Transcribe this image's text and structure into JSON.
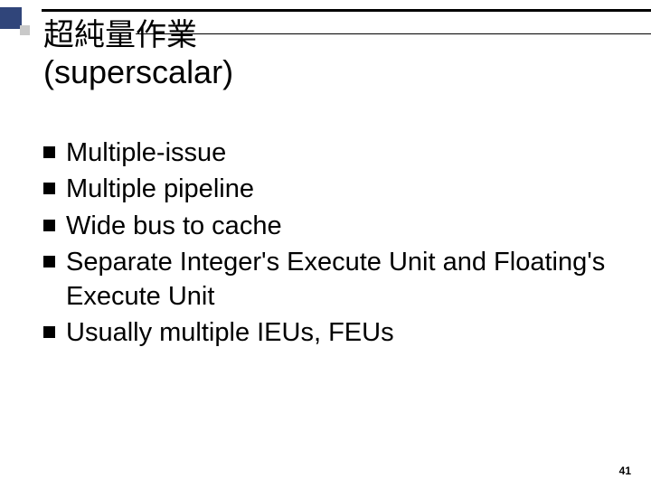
{
  "decor": {
    "big_square_color": "#30457a",
    "small_square_color": "#c9c9c9",
    "rule_color": "#000000"
  },
  "title": {
    "cjk": "超純量作業",
    "en": "(superscalar)"
  },
  "bullets": [
    "Multiple-issue",
    "Multiple pipeline",
    "Wide bus to cache",
    "Separate Integer's Execute Unit and Floating's Execute Unit",
    "Usually multiple IEUs, FEUs"
  ],
  "page_number": "41",
  "style": {
    "title_fontsize_cjk": 34,
    "title_fontsize_en": 36,
    "bullet_fontsize": 29,
    "bullet_marker_size": 13,
    "bullet_marker_color": "#000000",
    "text_color": "#000000",
    "background_color": "#ffffff",
    "page_num_fontsize": 12
  }
}
